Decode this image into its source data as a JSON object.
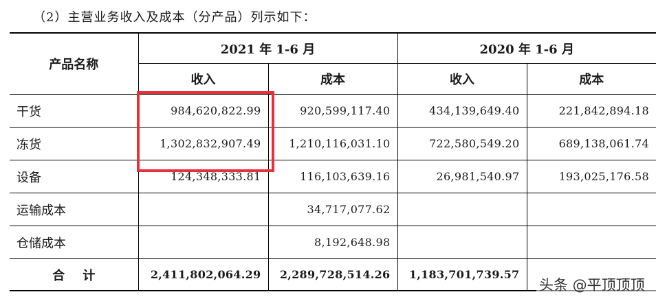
{
  "caption": "（2）主营业务收入及成本（分产品）列示如下：",
  "table": {
    "product_header": "产品名称",
    "period_2021": "2021 年 1-6 月",
    "period_2020": "2020 年 1-6 月",
    "sub_headers": [
      "收入",
      "成本",
      "收入",
      "成本"
    ],
    "rows": [
      {
        "name": "干货",
        "rev2021": "984,620,822.99",
        "cost2021": "920,599,117.40",
        "rev2020": "434,139,649.40",
        "cost2020": "221,842,894.18"
      },
      {
        "name": "冻货",
        "rev2021": "1,302,832,907.49",
        "cost2021": "1,210,116,031.10",
        "rev2020": "722,580,549.20",
        "cost2020": "689,138,061.74"
      },
      {
        "name": "设备",
        "rev2021": "124,348,333.81",
        "cost2021": "116,103,639.16",
        "rev2020": "26,981,540.97",
        "cost2020": "193,025,176.58"
      },
      {
        "name": "运输成本",
        "rev2021": "",
        "cost2021": "34,717,077.62",
        "rev2020": "",
        "cost2020": ""
      },
      {
        "name": "仓储成本",
        "rev2021": "",
        "cost2021": "8,192,648.98",
        "rev2020": "",
        "cost2020": ""
      }
    ],
    "total": {
      "label": "合计",
      "rev2021": "2,411,802,064.29",
      "cost2021": "2,289,728,514.26",
      "rev2020": "1,183,701,739.57",
      "cost2020": ""
    }
  },
  "highlight": {
    "color": "#e8303a"
  },
  "watermark": "头条 @平顶顶顶"
}
